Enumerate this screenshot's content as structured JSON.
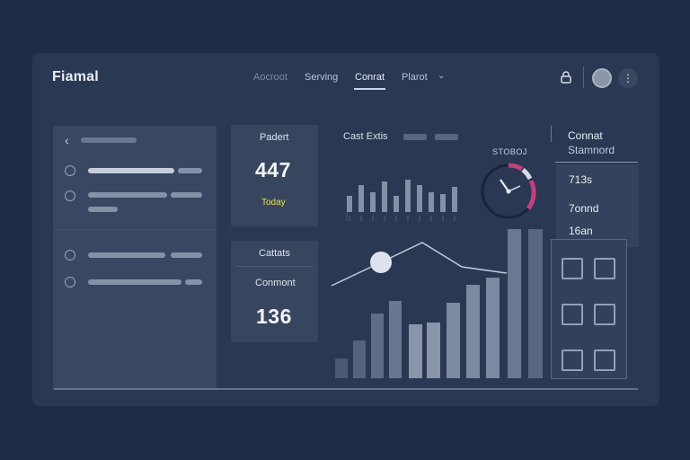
{
  "app": {
    "title": "Fiamal"
  },
  "nav": {
    "items": [
      {
        "label": "Aocroot",
        "state": "muted"
      },
      {
        "label": "Serving",
        "state": "normal"
      },
      {
        "label": "Conrat",
        "state": "active"
      },
      {
        "label": "Plarot",
        "state": "normal"
      }
    ]
  },
  "cards": {
    "top": {
      "label": "Padert",
      "value": "447",
      "sub": "Today"
    },
    "bottom": {
      "label": "Cattats",
      "sub": "Conmont",
      "value": "136"
    }
  },
  "chart": {
    "title": "Cast Extis"
  },
  "gauge": {
    "label": "STOBOJ"
  },
  "right_panel": {
    "title": "Connat",
    "subtitle": "Stamnord",
    "items": [
      "713s",
      "7onnd",
      "16an"
    ]
  },
  "colors": {
    "background": "#1f2c47",
    "window": "#2b3853",
    "accent_pink": "#c2407f",
    "accent_yellow": "#e7e24e"
  },
  "chart_data": [
    {
      "type": "bar",
      "label": "mini-bars",
      "values": [
        18,
        30,
        22,
        34,
        18,
        36,
        30,
        22,
        20,
        28
      ]
    },
    {
      "type": "bar",
      "label": "main-bars",
      "values": [
        22,
        42,
        72,
        86,
        60,
        62,
        84,
        104,
        112,
        166,
        166
      ]
    },
    {
      "type": "line",
      "label": "trend",
      "values": [
        14,
        40,
        62,
        35,
        28
      ]
    }
  ]
}
